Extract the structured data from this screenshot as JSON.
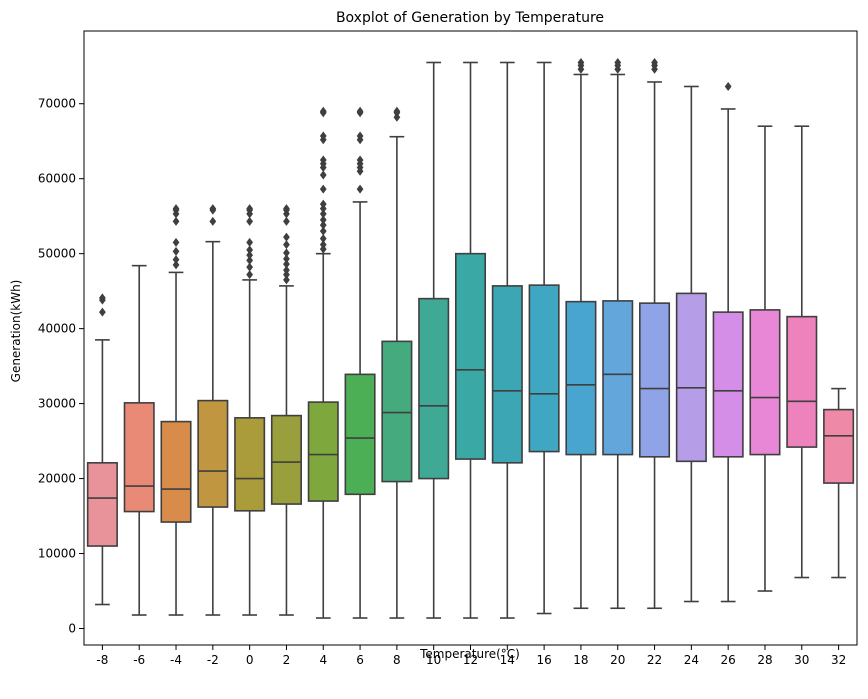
{
  "chart_data": {
    "type": "box",
    "title": "Boxplot of Generation by Temperature",
    "xlabel": "Temperature(°C)",
    "ylabel": "Generation(kWh)",
    "ylim": [
      -2200,
      79700
    ],
    "yticks": [
      0,
      10000,
      20000,
      30000,
      40000,
      50000,
      60000,
      70000
    ],
    "grid": false,
    "categories": [
      "-8",
      "-6",
      "-4",
      "-2",
      "0",
      "2",
      "4",
      "6",
      "8",
      "10",
      "12",
      "14",
      "16",
      "18",
      "20",
      "22",
      "24",
      "26",
      "28",
      "30",
      "32"
    ],
    "colors": [
      "#e8929a",
      "#e98a76",
      "#d98c49",
      "#c09640",
      "#aa9b3b",
      "#999f3c",
      "#7ea83d",
      "#4caf56",
      "#45ab7f",
      "#3fa995",
      "#3aa8a5",
      "#3ca6b5",
      "#40a7c2",
      "#47a5cf",
      "#62a6dc",
      "#90a3e6",
      "#b59de8",
      "#d48ee7",
      "#e887d5",
      "#ed82bd",
      "#ee8aa8"
    ],
    "boxes": [
      {
        "whisker_low": 3200,
        "q1": 11000,
        "median": 17400,
        "q3": 22100,
        "whisker_high": 38500,
        "outliers": [
          42200,
          43800,
          44100
        ]
      },
      {
        "whisker_low": 1800,
        "q1": 15600,
        "median": 19000,
        "q3": 30100,
        "whisker_high": 48400,
        "outliers": []
      },
      {
        "whisker_low": 1800,
        "q1": 14200,
        "median": 18600,
        "q3": 27600,
        "whisker_high": 47500,
        "outliers": [
          48500,
          49200,
          50300,
          51500,
          54300,
          55300,
          55800,
          56000
        ]
      },
      {
        "whisker_low": 1800,
        "q1": 16200,
        "median": 21000,
        "q3": 30400,
        "whisker_high": 51600,
        "outliers": [
          54300,
          55800,
          56000
        ]
      },
      {
        "whisker_low": 1800,
        "q1": 15700,
        "median": 20000,
        "q3": 28100,
        "whisker_high": 46500,
        "outliers": [
          47200,
          48200,
          49100,
          49800,
          50500,
          51500,
          54300,
          55300,
          55800,
          56000
        ]
      },
      {
        "whisker_low": 1800,
        "q1": 16600,
        "median": 22200,
        "q3": 28400,
        "whisker_high": 45700,
        "outliers": [
          46500,
          47200,
          47800,
          48600,
          49300,
          50100,
          51200,
          52200,
          54300,
          55300,
          55800,
          56000
        ]
      },
      {
        "whisker_low": 1400,
        "q1": 17000,
        "median": 23200,
        "q3": 30200,
        "whisker_high": 50000,
        "outliers": [
          50600,
          51200,
          52000,
          53000,
          53800,
          54500,
          55300,
          56000,
          56600,
          58600,
          60500,
          61500,
          62000,
          62500,
          65200,
          65700,
          68800,
          69000
        ]
      },
      {
        "whisker_low": 1400,
        "q1": 17900,
        "median": 25400,
        "q3": 33900,
        "whisker_high": 56900,
        "outliers": [
          58600,
          61000,
          61500,
          62000,
          62500,
          65200,
          65700,
          68800,
          69000
        ]
      },
      {
        "whisker_low": 1400,
        "q1": 19600,
        "median": 28800,
        "q3": 38300,
        "whisker_high": 65600,
        "outliers": [
          68200,
          68800,
          69000
        ]
      },
      {
        "whisker_low": 1400,
        "q1": 20000,
        "median": 29700,
        "q3": 44000,
        "whisker_high": 75500,
        "outliers": []
      },
      {
        "whisker_low": 1400,
        "q1": 22600,
        "median": 34500,
        "q3": 50000,
        "whisker_high": 75500,
        "outliers": []
      },
      {
        "whisker_low": 1400,
        "q1": 22100,
        "median": 31700,
        "q3": 45700,
        "whisker_high": 75500,
        "outliers": []
      },
      {
        "whisker_low": 2000,
        "q1": 23600,
        "median": 31300,
        "q3": 45800,
        "whisker_high": 75500,
        "outliers": []
      },
      {
        "whisker_low": 2700,
        "q1": 23200,
        "median": 32500,
        "q3": 43600,
        "whisker_high": 73900,
        "outliers": [
          74600,
          75100,
          75500
        ]
      },
      {
        "whisker_low": 2700,
        "q1": 23200,
        "median": 33900,
        "q3": 43700,
        "whisker_high": 73900,
        "outliers": [
          74600,
          75100,
          75500
        ]
      },
      {
        "whisker_low": 2700,
        "q1": 22900,
        "median": 32000,
        "q3": 43400,
        "whisker_high": 72900,
        "outliers": [
          74600,
          75100,
          75500
        ]
      },
      {
        "whisker_low": 3600,
        "q1": 22300,
        "median": 32100,
        "q3": 44700,
        "whisker_high": 72300,
        "outliers": []
      },
      {
        "whisker_low": 3600,
        "q1": 22900,
        "median": 31700,
        "q3": 42200,
        "whisker_high": 69300,
        "outliers": [
          72300
        ]
      },
      {
        "whisker_low": 5000,
        "q1": 23200,
        "median": 30800,
        "q3": 42500,
        "whisker_high": 67000,
        "outliers": []
      },
      {
        "whisker_low": 6800,
        "q1": 24200,
        "median": 30300,
        "q3": 41600,
        "whisker_high": 67000,
        "outliers": []
      },
      {
        "whisker_low": 6800,
        "q1": 19400,
        "median": 25700,
        "q3": 29200,
        "whisker_high": 32000,
        "outliers": []
      }
    ]
  }
}
